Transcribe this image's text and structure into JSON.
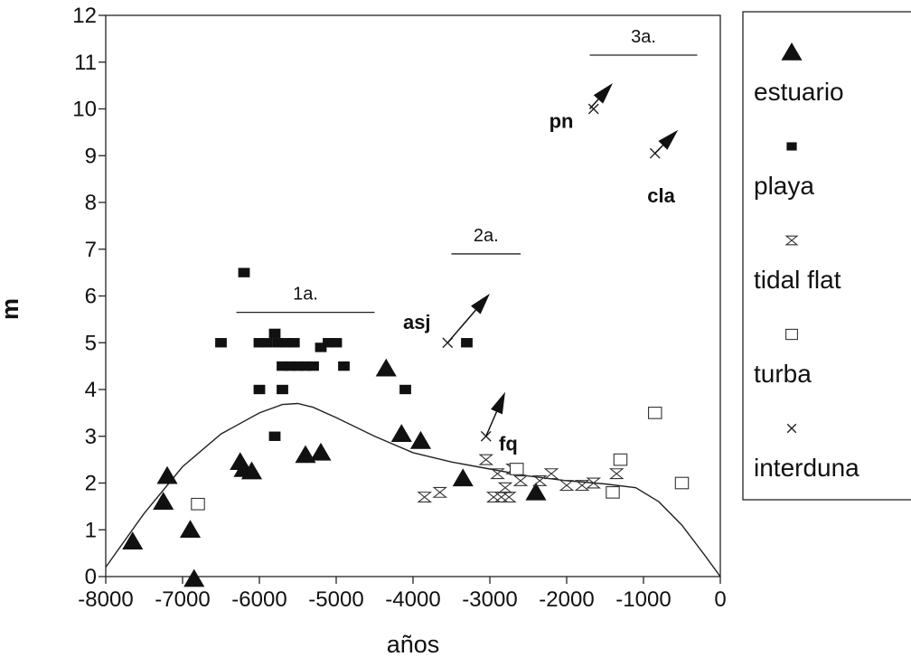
{
  "chart_data": {
    "type": "scatter",
    "title": "",
    "xlabel": "años",
    "ylabel": "m",
    "xlim": [
      -8000,
      0
    ],
    "ylim": [
      0,
      12
    ],
    "x_ticks": [
      -8000,
      -7000,
      -6000,
      -5000,
      -4000,
      -3000,
      -2000,
      -1000,
      0
    ],
    "x_tick_labels": [
      "-8000",
      "-7000",
      "-6000",
      "-5000",
      "-4000",
      "-3000",
      "-2000",
      "-1000",
      "0"
    ],
    "y_ticks": [
      0,
      1,
      2,
      3,
      4,
      5,
      6,
      7,
      8,
      9,
      10,
      11,
      12
    ],
    "y_tick_labels": [
      "0",
      "1",
      "2",
      "3",
      "4",
      "5",
      "6",
      "7",
      "8",
      "9",
      "10",
      "11",
      "12"
    ],
    "grid": false,
    "legend_position": "right",
    "series": [
      {
        "name": "estuario",
        "marker": "triangle",
        "points": [
          [
            -7650,
            0.75
          ],
          [
            -7200,
            2.15
          ],
          [
            -7250,
            1.6
          ],
          [
            -6900,
            1.0
          ],
          [
            -6850,
            -0.05
          ],
          [
            -6250,
            2.45
          ],
          [
            -6200,
            2.3
          ],
          [
            -6100,
            2.25
          ],
          [
            -5400,
            2.6
          ],
          [
            -5200,
            2.65
          ],
          [
            -4350,
            4.45
          ],
          [
            -4150,
            3.05
          ],
          [
            -3900,
            2.9
          ],
          [
            -3350,
            2.1
          ],
          [
            -2400,
            1.8
          ]
        ]
      },
      {
        "name": "playa",
        "marker": "square",
        "points": [
          [
            -6500,
            5.0
          ],
          [
            -6200,
            6.5
          ],
          [
            -6000,
            5.0
          ],
          [
            -5900,
            5.0
          ],
          [
            -5800,
            5.2
          ],
          [
            -5750,
            5.0
          ],
          [
            -5650,
            5.0
          ],
          [
            -5550,
            5.0
          ],
          [
            -5700,
            4.5
          ],
          [
            -5600,
            4.5
          ],
          [
            -5500,
            4.5
          ],
          [
            -5400,
            4.5
          ],
          [
            -5300,
            4.5
          ],
          [
            -5200,
            4.9
          ],
          [
            -5100,
            5.0
          ],
          [
            -5000,
            5.0
          ],
          [
            -4900,
            4.5
          ],
          [
            -6000,
            4.0
          ],
          [
            -5700,
            4.0
          ],
          [
            -5800,
            3.0
          ],
          [
            -4100,
            4.0
          ],
          [
            -3300,
            5.0
          ]
        ]
      },
      {
        "name": "tidal flat",
        "marker": "hourglass",
        "points": [
          [
            -3850,
            1.7
          ],
          [
            -3650,
            1.8
          ],
          [
            -3050,
            2.5
          ],
          [
            -2900,
            2.2
          ],
          [
            -2950,
            1.7
          ],
          [
            -2850,
            1.7
          ],
          [
            -2800,
            1.9
          ],
          [
            -2750,
            1.7
          ],
          [
            -2700,
            2.3
          ],
          [
            -2600,
            2.05
          ],
          [
            -2350,
            2.05
          ],
          [
            -2200,
            2.2
          ],
          [
            -2000,
            1.95
          ],
          [
            -1800,
            1.95
          ],
          [
            -1650,
            2.0
          ],
          [
            -1350,
            2.2
          ]
        ]
      },
      {
        "name": "turba",
        "marker": "open-square",
        "points": [
          [
            -6800,
            1.55
          ],
          [
            -2650,
            2.3
          ],
          [
            -1400,
            1.8
          ],
          [
            -1300,
            2.5
          ],
          [
            -850,
            3.5
          ],
          [
            -500,
            2.0
          ]
        ]
      },
      {
        "name": "interduna",
        "marker": "x",
        "points": [
          [
            -3550,
            5.0
          ],
          [
            -3050,
            3.0
          ],
          [
            -1650,
            10.0
          ],
          [
            -850,
            9.05
          ]
        ]
      }
    ],
    "curve": [
      [
        -8000,
        0.2
      ],
      [
        -7500,
        1.35
      ],
      [
        -7000,
        2.35
      ],
      [
        -6500,
        3.05
      ],
      [
        -6000,
        3.5
      ],
      [
        -5700,
        3.68
      ],
      [
        -5500,
        3.7
      ],
      [
        -5300,
        3.62
      ],
      [
        -5000,
        3.4
      ],
      [
        -4500,
        3.0
      ],
      [
        -4000,
        2.65
      ],
      [
        -3500,
        2.45
      ],
      [
        -3000,
        2.3
      ],
      [
        -2500,
        2.15
      ],
      [
        -2000,
        2.05
      ],
      [
        -1500,
        1.98
      ],
      [
        -1100,
        1.9
      ],
      [
        -800,
        1.6
      ],
      [
        -500,
        1.1
      ],
      [
        -200,
        0.45
      ],
      [
        0,
        0.0
      ]
    ],
    "arrows": [
      {
        "label": "pn",
        "from": [
          -1700,
          10.0
        ],
        "to": [
          -1400,
          10.55
        ]
      },
      {
        "label": "cla",
        "from": [
          -850,
          9.05
        ],
        "to": [
          -550,
          9.55
        ]
      },
      {
        "label": "asj",
        "from": [
          -3550,
          5.0
        ],
        "to": [
          -3000,
          6.05
        ]
      },
      {
        "label": "fq",
        "from": [
          -3050,
          3.0
        ],
        "to": [
          -2800,
          3.95
        ]
      }
    ],
    "periods": [
      {
        "label": "1a.",
        "x": [
          -6300,
          -4500
        ],
        "y": 5.65
      },
      {
        "label": "2a.",
        "x": [
          -3500,
          -2600
        ],
        "y": 6.9
      },
      {
        "label": "3a.",
        "x": [
          -1700,
          -300
        ],
        "y": 11.15
      }
    ],
    "annotations": [
      {
        "text": "pn",
        "x": -2070,
        "y": 9.75
      },
      {
        "text": "cla",
        "x": -770,
        "y": 8.15
      },
      {
        "text": "asj",
        "x": -3950,
        "y": 5.45
      },
      {
        "text": "fq",
        "x": -2760,
        "y": 2.85
      }
    ]
  }
}
